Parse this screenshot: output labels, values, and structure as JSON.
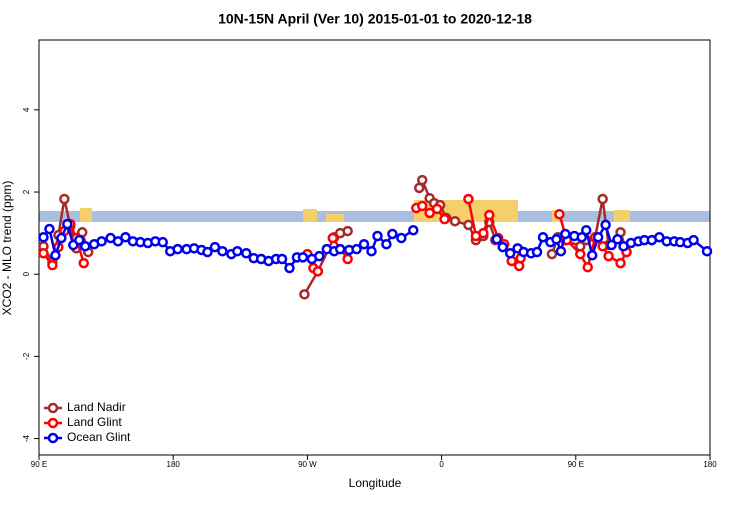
{
  "chart_data": {
    "type": "line",
    "title": "10N-15N April (Ver 10)   2015-01-01 to 2020-12-18",
    "x_label": "Longitude",
    "y_label": "XCO2 - MLO trend (ppm)",
    "xlim": [
      90,
      540
    ],
    "ylim": [
      -4.4,
      5.7
    ],
    "xticks": [
      {
        "value": 90,
        "label": "90 E"
      },
      180,
      {
        "value": 270,
        "label": "90 W"
      },
      {
        "value": 360,
        "label": "0"
      },
      {
        "value": 450,
        "label": "90 E"
      },
      {
        "value": 540,
        "label": "180"
      }
    ],
    "yticks": [
      -4,
      -2,
      0,
      2,
      4
    ],
    "legend": "bottom-left",
    "series": [
      {
        "name": "Land Nadir",
        "color": "#a52a2a",
        "x": [
          93,
          99,
          103,
          107,
          111,
          115,
          119,
          123,
          null,
          268,
          277,
          288,
          292,
          297,
          null,
          345,
          347,
          352,
          355,
          359,
          363,
          369,
          378,
          383,
          388,
          392,
          396,
          null,
          434,
          438,
          443,
          453,
          457,
          463,
          468,
          472,
          480,
          484
        ],
        "values": [
          0.68,
          0.29,
          0.95,
          1.83,
          1.17,
          0.63,
          1.02,
          0.54,
          null,
          -0.49,
          0.07,
          0.9,
          1.0,
          1.05,
          null,
          2.1,
          2.29,
          1.85,
          1.73,
          1.68,
          1.37,
          1.29,
          1.2,
          0.83,
          0.93,
          1.27,
          0.83,
          null,
          0.49,
          0.9,
          0.83,
          0.68,
          0.83,
          0.9,
          1.83,
          0.71,
          1.02,
          0.54
        ]
      },
      {
        "name": "Land Glint",
        "color": "#ff0000",
        "x": [
          93,
          99,
          103,
          107,
          111,
          115,
          120,
          null,
          270,
          274,
          277,
          null,
          287,
          297,
          null,
          343,
          347,
          352,
          357,
          362,
          null,
          378,
          383,
          388,
          392,
          398,
          402,
          407,
          412,
          413,
          null,
          439,
          444,
          453,
          458,
          463,
          468,
          472,
          480,
          484
        ],
        "values": [
          0.51,
          0.22,
          0.66,
          1.05,
          1.22,
          0.88,
          0.27,
          null,
          0.49,
          0.15,
          0.07,
          null,
          0.88,
          0.37,
          null,
          1.61,
          1.66,
          1.49,
          1.59,
          1.34,
          null,
          1.83,
          0.93,
          1.0,
          1.44,
          0.88,
          0.73,
          0.32,
          0.2,
          0.39,
          null,
          1.46,
          0.83,
          0.49,
          0.17,
          0.9,
          0.68,
          0.44,
          0.27,
          0.54
        ]
      },
      {
        "name": "Ocean Glint",
        "color": "#0000ee",
        "x": [
          93,
          97,
          101,
          105,
          109,
          113,
          117,
          121,
          127,
          132,
          138,
          143,
          148,
          153,
          158,
          163,
          168,
          173,
          178,
          183,
          189,
          194,
          199,
          203,
          208,
          213,
          219,
          223,
          229,
          234,
          239,
          244,
          249,
          253,
          258,
          263,
          267,
          273,
          278,
          283,
          288,
          292,
          298,
          303,
          308,
          313,
          317,
          323,
          327,
          333,
          341,
          null,
          397,
          401,
          406,
          411,
          415,
          420,
          424,
          428,
          433,
          437,
          440,
          443,
          449,
          454,
          457,
          461,
          465,
          470,
          474,
          478,
          482,
          487,
          492,
          496,
          501,
          506,
          511,
          516,
          520,
          525,
          529,
          538
        ],
        "values": [
          0.9,
          1.1,
          0.46,
          0.88,
          1.22,
          0.71,
          0.83,
          0.68,
          0.73,
          0.8,
          0.88,
          0.8,
          0.9,
          0.8,
          0.78,
          0.76,
          0.8,
          0.78,
          0.56,
          0.61,
          0.61,
          0.63,
          0.59,
          0.54,
          0.66,
          0.56,
          0.49,
          0.56,
          0.51,
          0.39,
          0.37,
          0.32,
          0.37,
          0.37,
          0.15,
          0.41,
          0.41,
          0.37,
          0.44,
          0.61,
          0.56,
          0.61,
          0.59,
          0.61,
          0.73,
          0.56,
          0.93,
          0.73,
          0.98,
          0.88,
          1.07,
          null,
          0.85,
          0.66,
          0.51,
          0.63,
          0.54,
          0.51,
          0.54,
          0.9,
          0.78,
          0.85,
          0.56,
          0.98,
          0.93,
          0.9,
          1.07,
          0.46,
          0.9,
          1.2,
          0.71,
          0.85,
          0.68,
          0.76,
          0.8,
          0.83,
          0.83,
          0.9,
          0.8,
          0.8,
          0.78,
          0.76,
          0.83,
          0.56
        ]
      }
    ]
  }
}
